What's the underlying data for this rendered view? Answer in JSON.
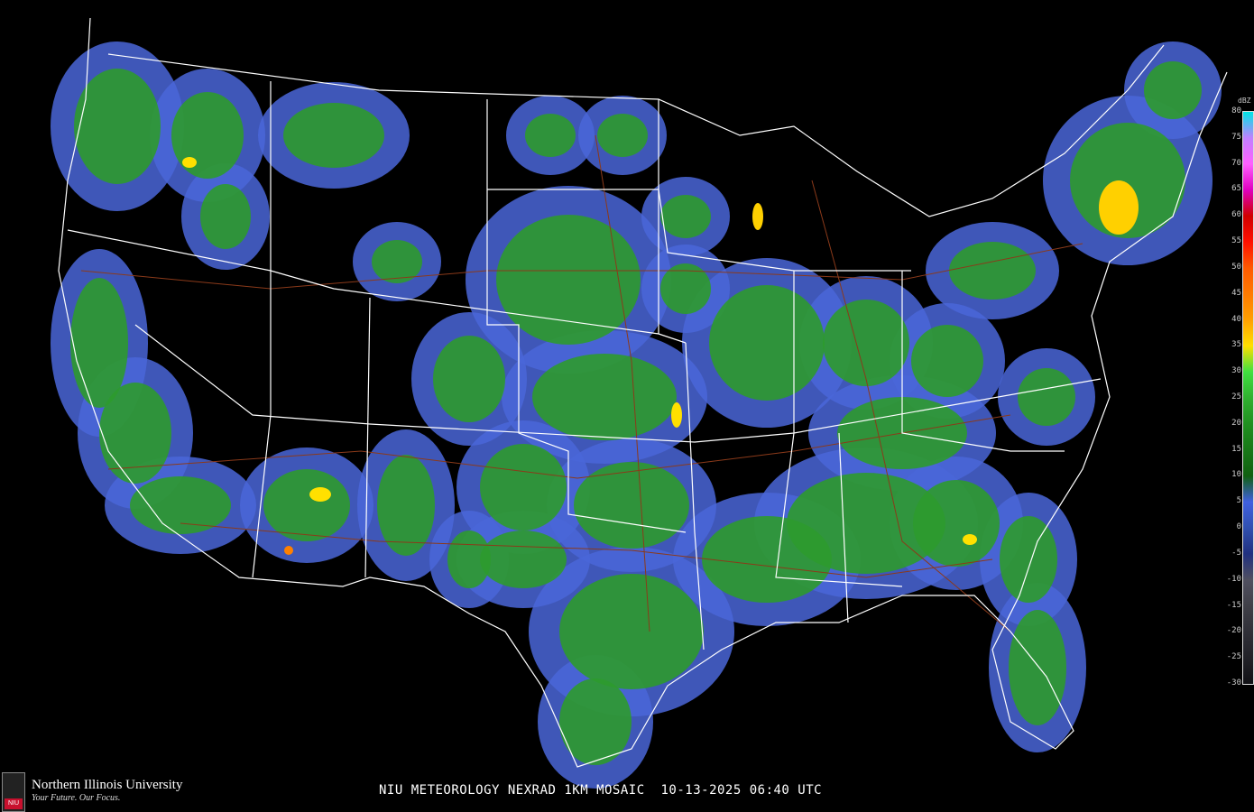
{
  "caption": "NIU METEOROLOGY NEXRAD 1KM MOSAIC  10-13-2025 06:40 UTC",
  "logo": {
    "name": "Northern Illinois University",
    "tagline": "Your Future. Our Focus.",
    "seal_text": "NIU"
  },
  "legend": {
    "unit": "dBZ",
    "labels": [
      "80",
      "75",
      "70",
      "65",
      "60",
      "55",
      "50",
      "45",
      "40",
      "35",
      "30",
      "25",
      "20",
      "15",
      "10",
      "5",
      "0",
      "-5",
      "-10",
      "-15",
      "-20",
      "-25",
      "-30"
    ],
    "colors": {
      "80": "#00e5e5",
      "75": "#c080ff",
      "70": "#ff60ff",
      "65": "#e000c0",
      "60": "#d00000",
      "55": "#ff1000",
      "50": "#ff5a00",
      "45": "#ff7a00",
      "40": "#ffa000",
      "35": "#ffe000",
      "30": "#40e040",
      "25": "#30b030",
      "20": "#209020",
      "15": "#187818",
      "10": "#106010",
      "5": "#4060e0",
      "0": "#3050b0",
      "-5": "#203080",
      "-10": "#505060",
      "-15": "#404048",
      "-20": "#303038",
      "-25": "#222228",
      "-30": "#111115"
    }
  },
  "map": {
    "background": "#000000",
    "boundary_color": "#ffffff",
    "highway_color": "#8b3a1a"
  }
}
